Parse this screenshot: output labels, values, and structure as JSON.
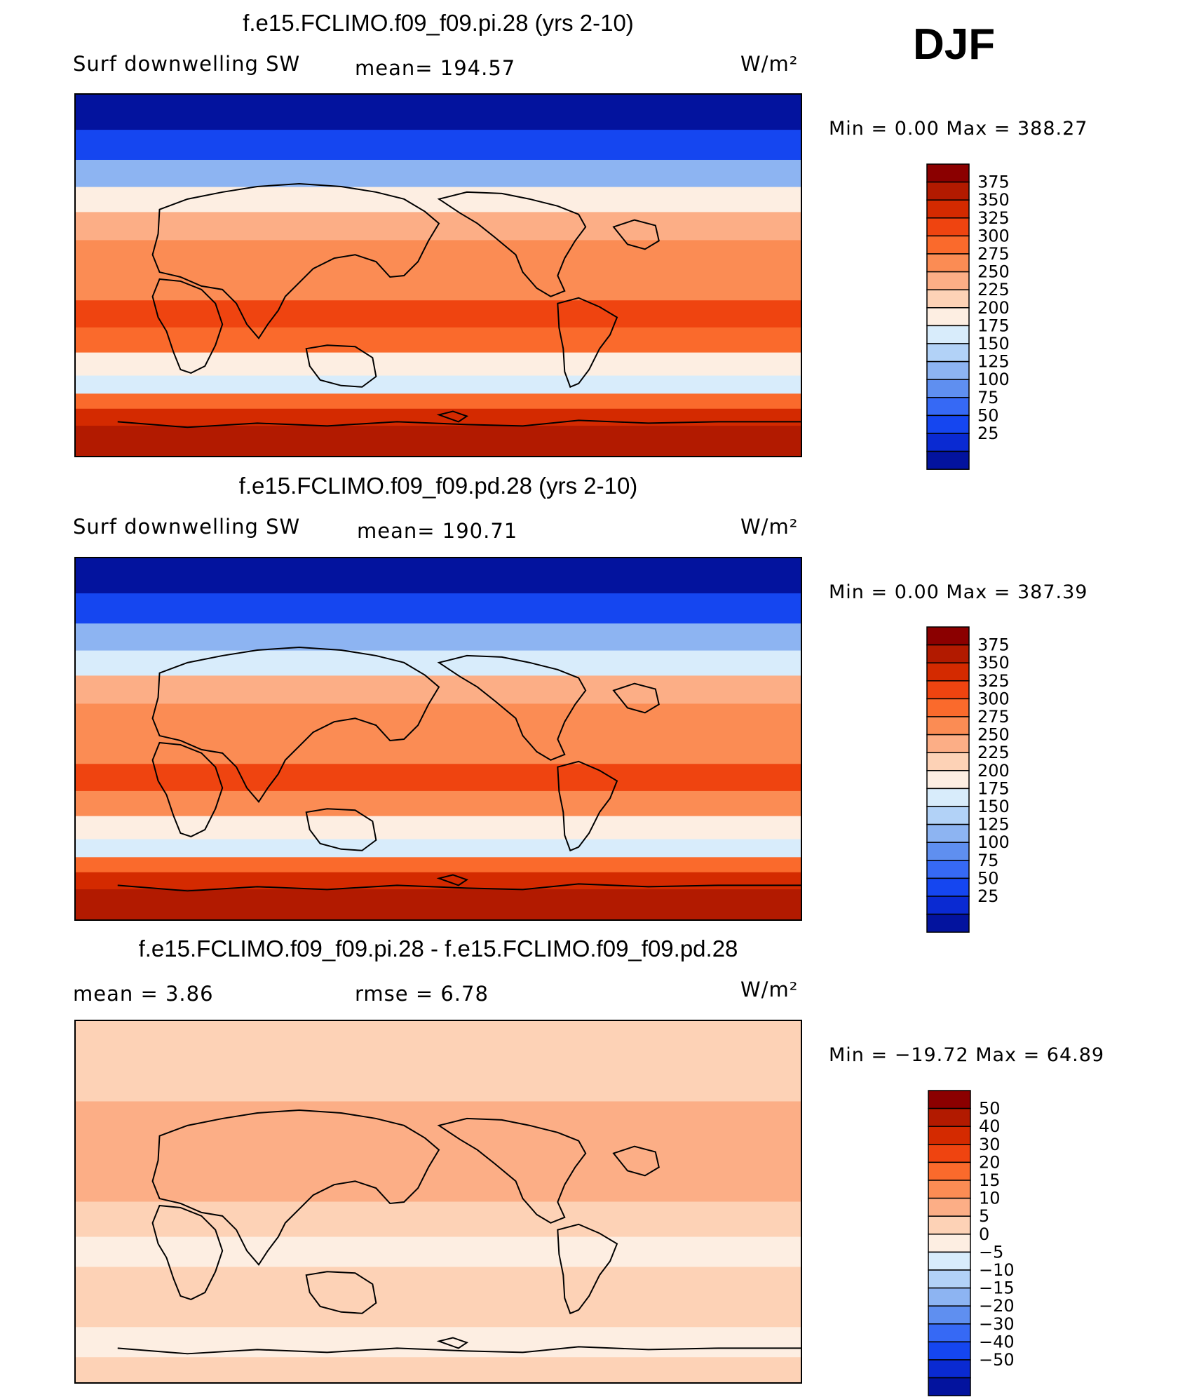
{
  "header": {
    "season": "DJF"
  },
  "panels": [
    {
      "title": "f.e15.FCLIMO.f09_f09.pi.28 (yrs 2-10)",
      "left_label": "Surf downwelling SW",
      "mid_label": "mean= 194.57",
      "units": "W/m²",
      "minmax": "Min =    0.00 Max = 388.27"
    },
    {
      "title": "f.e15.FCLIMO.f09_f09.pd.28 (yrs 2-10)",
      "left_label": "Surf downwelling SW",
      "mid_label": "mean= 190.71",
      "units": "W/m²",
      "minmax": "Min =    0.00 Max = 387.39"
    },
    {
      "title": "f.e15.FCLIMO.f09_f09.pi.28 - f.e15.FCLIMO.f09_f09.pd.28",
      "left_label": "mean =    3.86",
      "mid_label": "rmse =    6.78",
      "units": "W/m²",
      "minmax": "Min = −19.72 Max =  64.89"
    }
  ],
  "chart_data": [
    {
      "type": "heatmap",
      "title": "f.e15.FCLIMO.f09_f09.pi.28 (yrs 2-10)",
      "variable": "Surf downwelling SW",
      "units": "W/m²",
      "mean": 194.57,
      "min": 0.0,
      "max": 388.27,
      "colorbar_levels": [
        375,
        350,
        325,
        300,
        275,
        250,
        225,
        200,
        175,
        150,
        125,
        100,
        75,
        50,
        25
      ],
      "colorbar_colors": [
        "#8b0000",
        "#b21a00",
        "#d42a00",
        "#ef4410",
        "#fa6a2c",
        "#fb8c54",
        "#fcae86",
        "#fdd2b6",
        "#fdeee2",
        "#d8ecfb",
        "#b2d2f7",
        "#8db4f2",
        "#5f8ff0",
        "#3669f5",
        "#1546f0",
        "#0a2ad2",
        "#03139e"
      ],
      "rows": [
        {
          "lat": 80,
          "value": 10
        },
        {
          "lat": 65,
          "value": 40
        },
        {
          "lat": 50,
          "value": 110
        },
        {
          "lat": 38,
          "value": 175
        },
        {
          "lat": 25,
          "value": 235
        },
        {
          "lat": 10,
          "value": 265
        },
        {
          "lat": -5,
          "value": 260
        },
        {
          "lat": -20,
          "value": 310
        },
        {
          "lat": -32,
          "value": 275
        },
        {
          "lat": -45,
          "value": 190
        },
        {
          "lat": -55,
          "value": 155
        },
        {
          "lat": -63,
          "value": 290
        },
        {
          "lat": -70,
          "value": 340
        },
        {
          "lat": -80,
          "value": 360
        }
      ]
    },
    {
      "type": "heatmap",
      "title": "f.e15.FCLIMO.f09_f09.pd.28 (yrs 2-10)",
      "variable": "Surf downwelling SW",
      "units": "W/m²",
      "mean": 190.71,
      "min": 0.0,
      "max": 387.39,
      "colorbar_levels": [
        375,
        350,
        325,
        300,
        275,
        250,
        225,
        200,
        175,
        150,
        125,
        100,
        75,
        50,
        25
      ],
      "colorbar_colors": [
        "#8b0000",
        "#b21a00",
        "#d42a00",
        "#ef4410",
        "#fa6a2c",
        "#fb8c54",
        "#fcae86",
        "#fdd2b6",
        "#fdeee2",
        "#d8ecfb",
        "#b2d2f7",
        "#8db4f2",
        "#5f8ff0",
        "#3669f5",
        "#1546f0",
        "#0a2ad2",
        "#03139e"
      ],
      "rows": [
        {
          "lat": 80,
          "value": 8
        },
        {
          "lat": 65,
          "value": 35
        },
        {
          "lat": 50,
          "value": 100
        },
        {
          "lat": 38,
          "value": 165
        },
        {
          "lat": 25,
          "value": 225
        },
        {
          "lat": 10,
          "value": 255
        },
        {
          "lat": -5,
          "value": 255
        },
        {
          "lat": -20,
          "value": 305
        },
        {
          "lat": -32,
          "value": 270
        },
        {
          "lat": -45,
          "value": 185
        },
        {
          "lat": -55,
          "value": 150
        },
        {
          "lat": -63,
          "value": 285
        },
        {
          "lat": -70,
          "value": 335
        },
        {
          "lat": -80,
          "value": 358
        }
      ]
    },
    {
      "type": "heatmap",
      "title": "f.e15.FCLIMO.f09_f09.pi.28 - f.e15.FCLIMO.f09_f09.pd.28",
      "units": "W/m²",
      "mean": 3.86,
      "rmse": 6.78,
      "min": -19.72,
      "max": 64.89,
      "colorbar_levels": [
        50,
        40,
        30,
        20,
        15,
        10,
        5,
        0,
        -5,
        -10,
        -15,
        -20,
        -30,
        -40,
        -50
      ],
      "colorbar_colors": [
        "#8b0000",
        "#b21a00",
        "#d42a00",
        "#ef4410",
        "#fa6a2c",
        "#fb8c54",
        "#fcae86",
        "#fdd2b6",
        "#fdeee2",
        "#d8ecfb",
        "#b2d2f7",
        "#8db4f2",
        "#5f8ff0",
        "#3669f5",
        "#1546f0",
        "#0a2ad2",
        "#03139e"
      ],
      "rows": [
        {
          "lat": 80,
          "value": 3
        },
        {
          "lat": 60,
          "value": 4
        },
        {
          "lat": 40,
          "value": 6
        },
        {
          "lat": 25,
          "value": 8
        },
        {
          "lat": 10,
          "value": 5
        },
        {
          "lat": -10,
          "value": 1
        },
        {
          "lat": -25,
          "value": -2
        },
        {
          "lat": -40,
          "value": 2
        },
        {
          "lat": -55,
          "value": 3
        },
        {
          "lat": -70,
          "value": -3
        },
        {
          "lat": -85,
          "value": 2
        }
      ]
    }
  ]
}
